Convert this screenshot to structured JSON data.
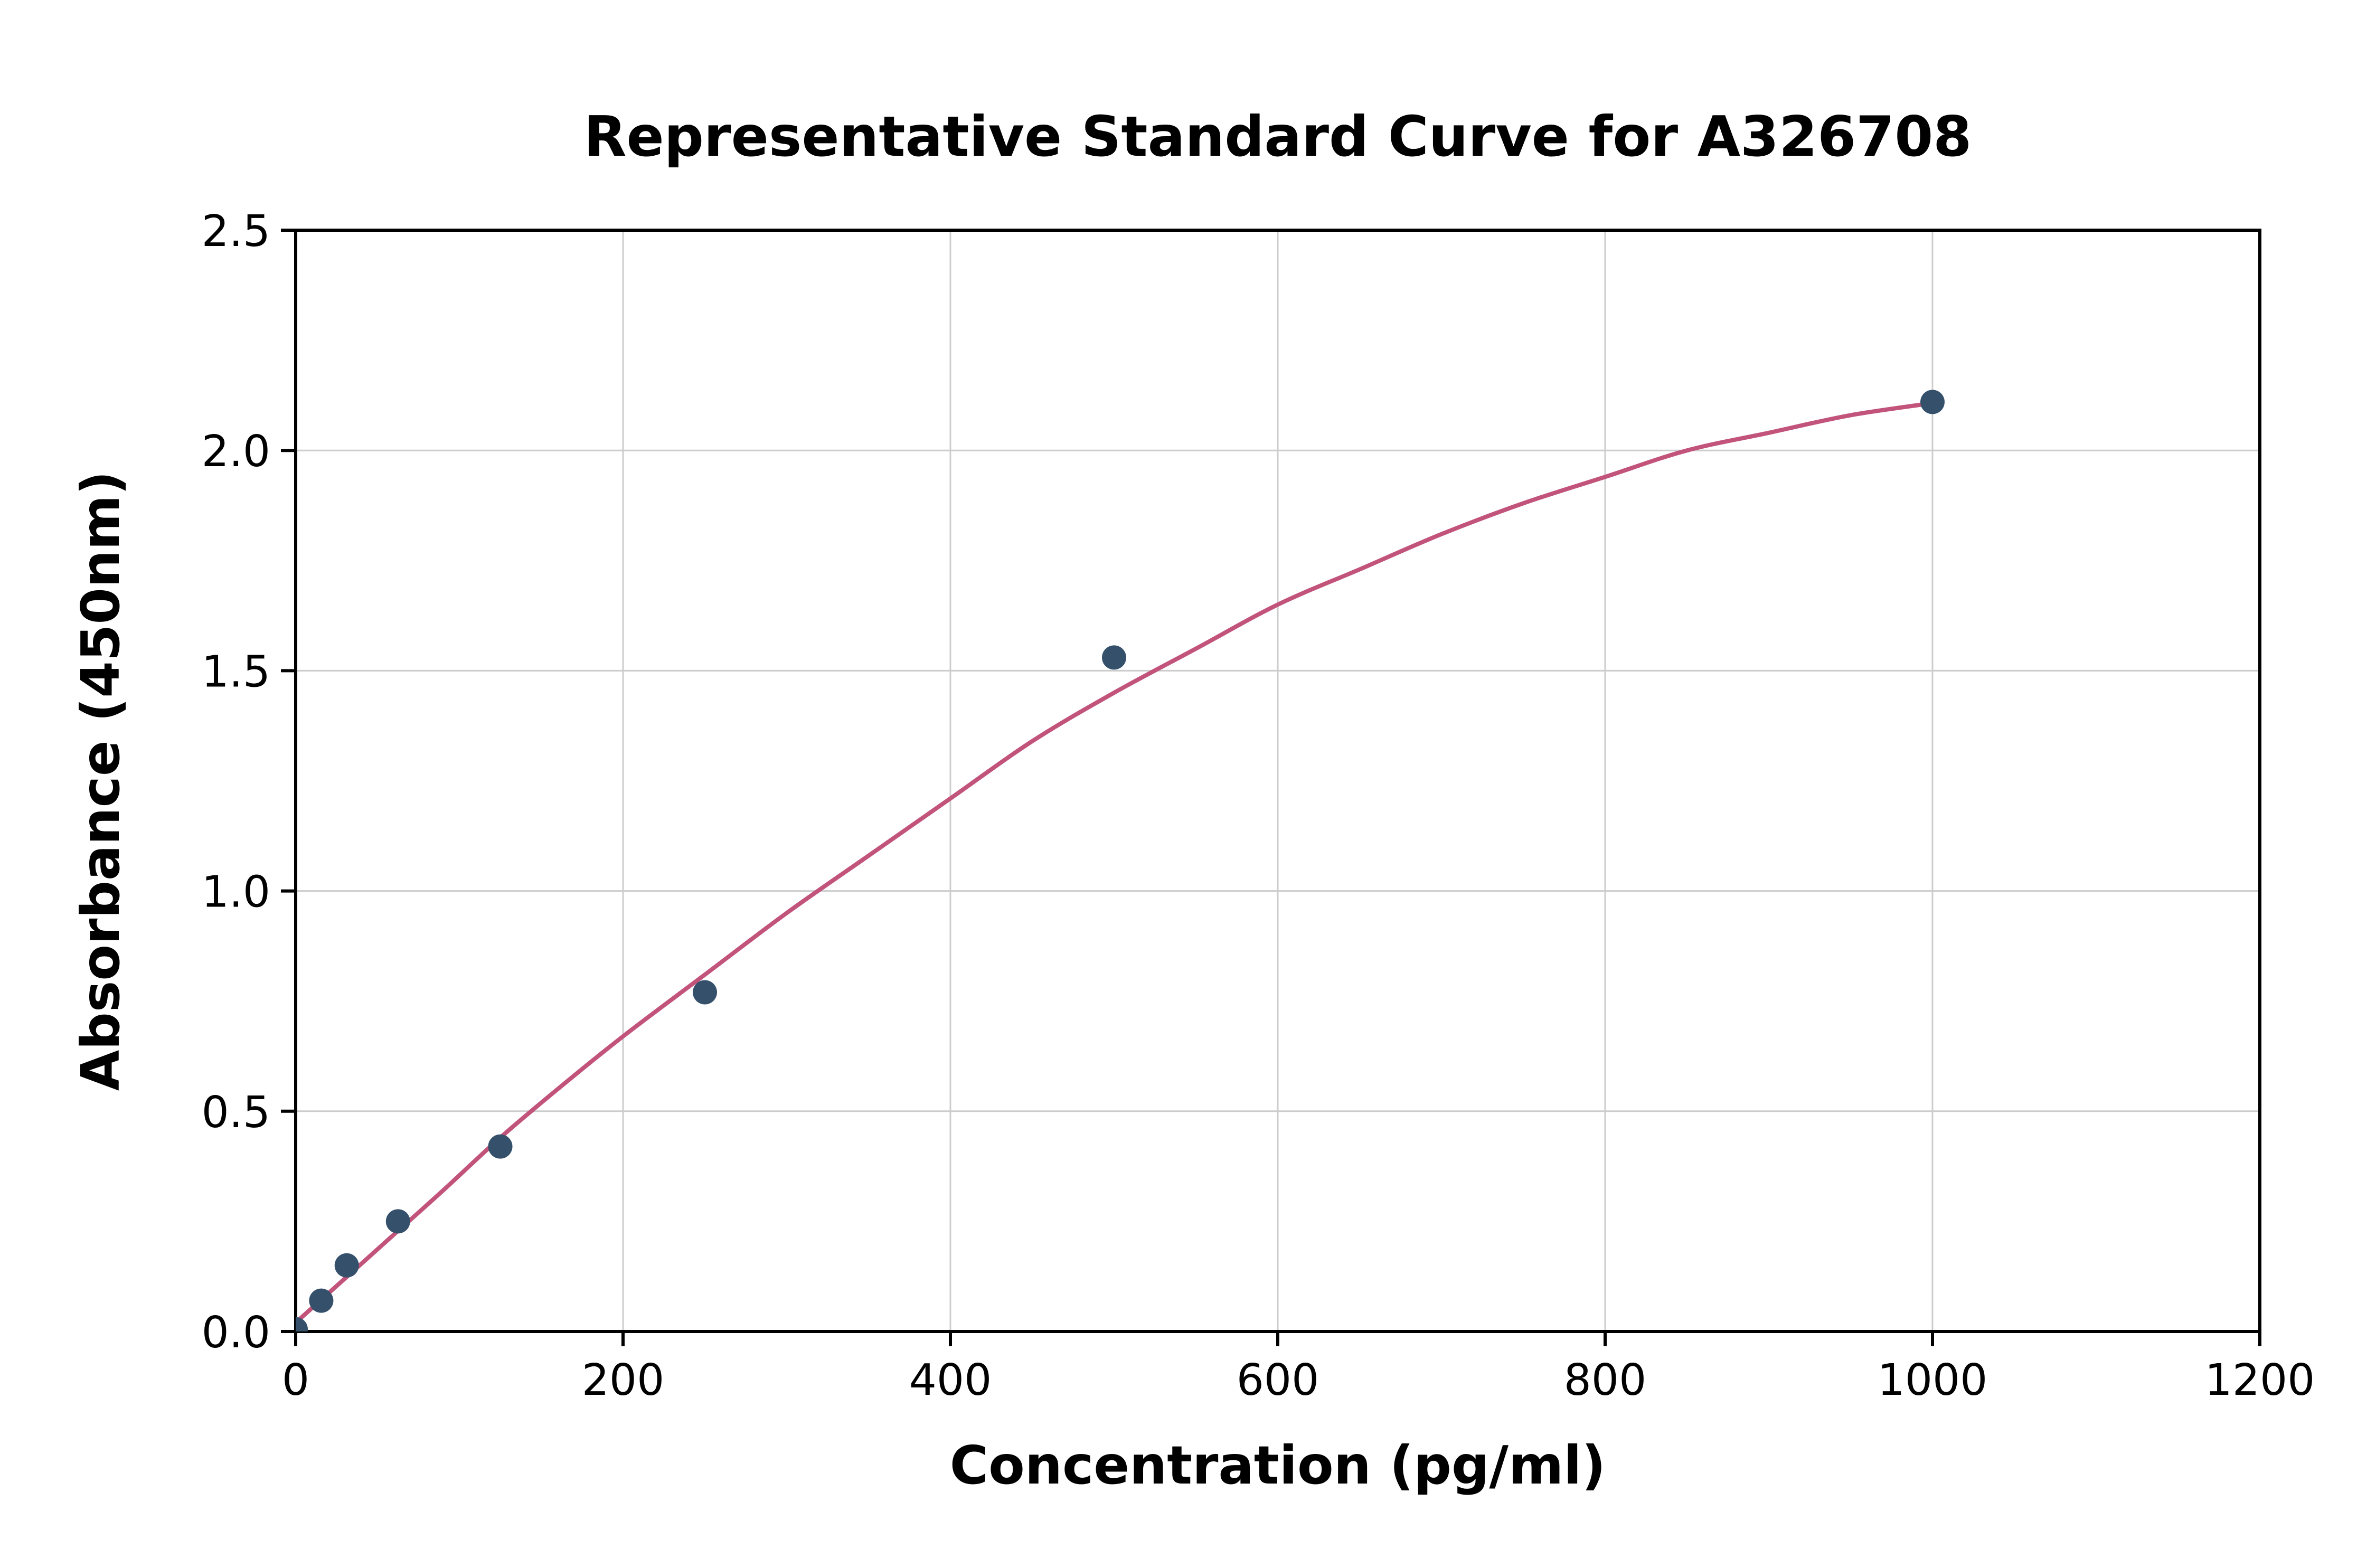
{
  "chart_data": {
    "type": "scatter",
    "title": "Representative Standard Curve for A326708",
    "xlabel": "Concentration (pg/ml)",
    "ylabel": "Absorbance (450nm)",
    "xlim": [
      0,
      1200
    ],
    "ylim": [
      0,
      2.5
    ],
    "grid": true,
    "legend": null,
    "xticks": [
      {
        "v": 0,
        "label": "0"
      },
      {
        "v": 200,
        "label": "200"
      },
      {
        "v": 400,
        "label": "400"
      },
      {
        "v": 600,
        "label": "600"
      },
      {
        "v": 800,
        "label": "800"
      },
      {
        "v": 1000,
        "label": "1000"
      },
      {
        "v": 1200,
        "label": "1200"
      }
    ],
    "yticks": [
      {
        "v": 0,
        "label": "0.0"
      },
      {
        "v": 0.5,
        "label": "0.5"
      },
      {
        "v": 1,
        "label": "1.0"
      },
      {
        "v": 1.5,
        "label": "1.5"
      },
      {
        "v": 2,
        "label": "2.0"
      },
      {
        "v": 2.5,
        "label": "2.5"
      }
    ],
    "points": [
      {
        "x": 0,
        "y": 0.005
      },
      {
        "x": 15.6,
        "y": 0.07
      },
      {
        "x": 31.2,
        "y": 0.15
      },
      {
        "x": 62.5,
        "y": 0.25
      },
      {
        "x": 125,
        "y": 0.42
      },
      {
        "x": 250,
        "y": 0.77
      },
      {
        "x": 500,
        "y": 1.53
      },
      {
        "x": 1000,
        "y": 2.11
      }
    ],
    "fit_curve": [
      {
        "x": 0,
        "y": 0.02
      },
      {
        "x": 30,
        "y": 0.12
      },
      {
        "x": 60,
        "y": 0.22
      },
      {
        "x": 90,
        "y": 0.32
      },
      {
        "x": 125,
        "y": 0.44
      },
      {
        "x": 160,
        "y": 0.55
      },
      {
        "x": 200,
        "y": 0.67
      },
      {
        "x": 250,
        "y": 0.81
      },
      {
        "x": 300,
        "y": 0.95
      },
      {
        "x": 350,
        "y": 1.08
      },
      {
        "x": 400,
        "y": 1.21
      },
      {
        "x": 450,
        "y": 1.34
      },
      {
        "x": 500,
        "y": 1.45
      },
      {
        "x": 550,
        "y": 1.55
      },
      {
        "x": 600,
        "y": 1.65
      },
      {
        "x": 650,
        "y": 1.73
      },
      {
        "x": 700,
        "y": 1.81
      },
      {
        "x": 750,
        "y": 1.88
      },
      {
        "x": 800,
        "y": 1.94
      },
      {
        "x": 850,
        "y": 2.0
      },
      {
        "x": 900,
        "y": 2.04
      },
      {
        "x": 950,
        "y": 2.08
      },
      {
        "x": 1005,
        "y": 2.11
      }
    ],
    "colors": {
      "point": "#35506b",
      "curve": "#c2537a",
      "grid": "#cccccc",
      "axis": "#000000",
      "background": "#ffffff"
    }
  }
}
